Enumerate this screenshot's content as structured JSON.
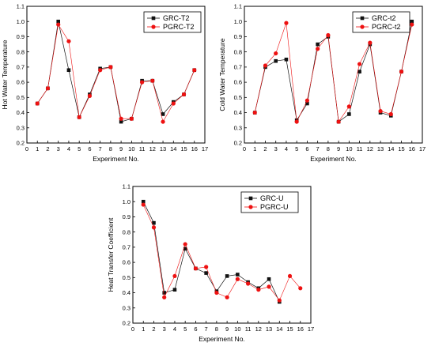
{
  "colors": {
    "series_a": "#111111",
    "series_b": "#ee1111"
  },
  "chart_data": [
    {
      "type": "line",
      "xlabel": "Experiment No.",
      "ylabel": "Hot Water Temperature",
      "xlim": [
        0,
        17
      ],
      "ylim": [
        0.2,
        1.1
      ],
      "xticks": [
        0,
        1,
        2,
        3,
        4,
        5,
        6,
        7,
        8,
        9,
        10,
        11,
        12,
        13,
        14,
        15,
        16,
        17
      ],
      "yticks": [
        0.2,
        0.3,
        0.4,
        0.5,
        0.6,
        0.7,
        0.8,
        0.9,
        1.0,
        1.1
      ],
      "legend": "top-right",
      "x": [
        1,
        2,
        3,
        4,
        5,
        6,
        7,
        8,
        9,
        10,
        11,
        12,
        13,
        14,
        15,
        16
      ],
      "series": [
        {
          "name": "GRC-T2",
          "marker": "square",
          "values": [
            0.46,
            0.56,
            1.0,
            0.68,
            0.37,
            0.52,
            0.69,
            0.7,
            0.34,
            0.36,
            0.61,
            0.61,
            0.39,
            0.47,
            0.52,
            0.68
          ]
        },
        {
          "name": "PGRC-T2",
          "marker": "circle",
          "values": [
            0.46,
            0.56,
            0.98,
            0.87,
            0.37,
            0.51,
            0.68,
            0.7,
            0.36,
            0.36,
            0.6,
            0.61,
            0.34,
            0.46,
            0.52,
            0.68
          ]
        }
      ]
    },
    {
      "type": "line",
      "xlabel": "Experiment No.",
      "ylabel": "Cold Water Temperature",
      "xlim": [
        0,
        17
      ],
      "ylim": [
        0.2,
        1.1
      ],
      "xticks": [
        0,
        1,
        2,
        3,
        4,
        5,
        6,
        7,
        8,
        9,
        10,
        11,
        12,
        13,
        14,
        15,
        16,
        17
      ],
      "yticks": [
        0.2,
        0.3,
        0.4,
        0.5,
        0.6,
        0.7,
        0.8,
        0.9,
        1.0,
        1.1
      ],
      "legend": "top-right",
      "x": [
        1,
        2,
        3,
        4,
        5,
        6,
        7,
        8,
        9,
        10,
        11,
        12,
        13,
        14,
        15,
        16
      ],
      "series": [
        {
          "name": "GRC-t2",
          "marker": "square",
          "values": [
            0.4,
            0.7,
            0.74,
            0.75,
            0.35,
            0.46,
            0.85,
            0.9,
            0.34,
            0.39,
            0.67,
            0.85,
            0.4,
            0.38,
            0.67,
            1.0
          ]
        },
        {
          "name": "PGRC-t2",
          "marker": "circle",
          "values": [
            0.4,
            0.71,
            0.79,
            0.99,
            0.34,
            0.48,
            0.82,
            0.91,
            0.34,
            0.44,
            0.72,
            0.86,
            0.41,
            0.39,
            0.67,
            0.98
          ]
        }
      ]
    },
    {
      "type": "line",
      "xlabel": "Experiment No.",
      "ylabel": "Heat Transfer Coefficient",
      "xlim": [
        0,
        17
      ],
      "ylim": [
        0.2,
        1.1
      ],
      "xticks": [
        0,
        1,
        2,
        3,
        4,
        5,
        6,
        7,
        8,
        9,
        10,
        11,
        12,
        13,
        14,
        15,
        16,
        17
      ],
      "yticks": [
        0.2,
        0.3,
        0.4,
        0.5,
        0.6,
        0.7,
        0.8,
        0.9,
        1.0,
        1.1
      ],
      "legend": "top-right",
      "x": [
        1,
        2,
        3,
        4,
        5,
        6,
        7,
        8,
        9,
        10,
        11,
        12,
        13,
        14,
        15,
        16
      ],
      "series": [
        {
          "name": "GRC-U",
          "marker": "square",
          "values": [
            1.0,
            0.86,
            0.4,
            0.42,
            0.69,
            0.56,
            0.53,
            0.41,
            0.51,
            0.52,
            0.47,
            0.43,
            0.49,
            0.34,
            null,
            null
          ]
        },
        {
          "name": "PGRC-U",
          "marker": "circle",
          "values": [
            0.98,
            0.83,
            0.37,
            0.51,
            0.72,
            0.56,
            0.57,
            0.4,
            0.37,
            0.49,
            0.46,
            0.42,
            0.44,
            0.35,
            0.51,
            0.43
          ]
        }
      ]
    }
  ]
}
